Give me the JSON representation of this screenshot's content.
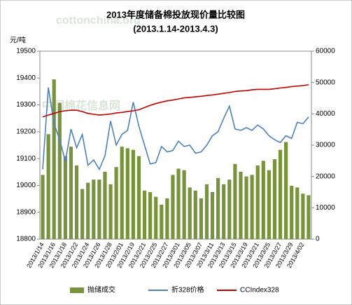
{
  "chart_data": {
    "type": "bar_line",
    "title": "2013年度储备棉投放现价量比较图",
    "subtitle": "(2013.1.14-2013.4.3)",
    "y_label": "元/吨",
    "watermarks": [
      "cottonchina.org",
      "中国棉花信息网"
    ],
    "categories": [
      "2013/1/14",
      null,
      "2013/1/16",
      null,
      "2013/1/18",
      null,
      "2013/1/22",
      null,
      "2013/1/24",
      null,
      "2013/1/26",
      null,
      "2013/1/28",
      null,
      "2013/2/01",
      null,
      "2013/2/19",
      null,
      "2013/2/21",
      null,
      "2013/2/25",
      null,
      "2013/2/27",
      null,
      "2013/3/01",
      null,
      "2013/3/05",
      null,
      "2013/3/07",
      null,
      "2013/3/11",
      null,
      "2013/3/13",
      null,
      "2013/3/15",
      null,
      "2013/3/19",
      null,
      "2013/3/21",
      null,
      "2013/3/25",
      null,
      "2013/3/27",
      null,
      "2013/3/29",
      null,
      "2013/4/02",
      null
    ],
    "series": [
      {
        "name": "抛储成交",
        "color": "#77933c",
        "axis": "y2",
        "kind": "bar",
        "values": [
          20500,
          33500,
          51000,
          43500,
          26500,
          29500,
          23500,
          16000,
          18000,
          19000,
          19000,
          21500,
          17500,
          23000,
          29500,
          29000,
          28500,
          26500,
          15500,
          15000,
          13500,
          11000,
          13000,
          20500,
          22500,
          22000,
          16500,
          15500,
          13000,
          17500,
          15000,
          19500,
          17500,
          19000,
          24000,
          21500,
          20000,
          20500,
          23500,
          25000,
          22000,
          25500,
          28500,
          31000,
          17000,
          16500,
          14500,
          14000
        ]
      },
      {
        "name": "折328价格",
        "color": "#4f81bd",
        "kind": "line",
        "values": [
          19060,
          19365,
          19230,
          19170,
          19090,
          19210,
          19140,
          19190,
          19075,
          19095,
          19060,
          19110,
          19240,
          19150,
          19190,
          19205,
          19310,
          19220,
          19150,
          19080,
          19085,
          19145,
          19125,
          19130,
          19165,
          19145,
          19150,
          19120,
          19125,
          19150,
          19185,
          19200,
          19250,
          19295,
          19210,
          19205,
          19215,
          19205,
          19225,
          19210,
          19185,
          19170,
          19160,
          19185,
          19175,
          19235,
          19230,
          19255
        ]
      },
      {
        "name": "CCIndex328",
        "color": "#c00000",
        "kind": "line",
        "values": [
          19255,
          19262,
          19268,
          19275,
          19278,
          19280,
          19280,
          19275,
          19268,
          19265,
          19262,
          19264,
          19266,
          19270,
          19272,
          19275,
          19278,
          19282,
          19290,
          19298,
          19305,
          19310,
          19315,
          19318,
          19322,
          19326,
          19328,
          19330,
          19332,
          19335,
          19337,
          19340,
          19343,
          19346,
          19350,
          19352,
          19353,
          19356,
          19358,
          19358,
          19358,
          19360,
          19363,
          19365,
          19368,
          19370,
          19372,
          19375
        ]
      }
    ],
    "ylim": [
      18800,
      19500
    ],
    "yticks": [
      18800,
      18900,
      19000,
      19100,
      19200,
      19300,
      19400,
      19500
    ],
    "y2lim": [
      0,
      60000
    ],
    "y2ticks": [
      0,
      10000,
      20000,
      30000,
      40000,
      50000,
      60000
    ],
    "legend": "bottom"
  }
}
